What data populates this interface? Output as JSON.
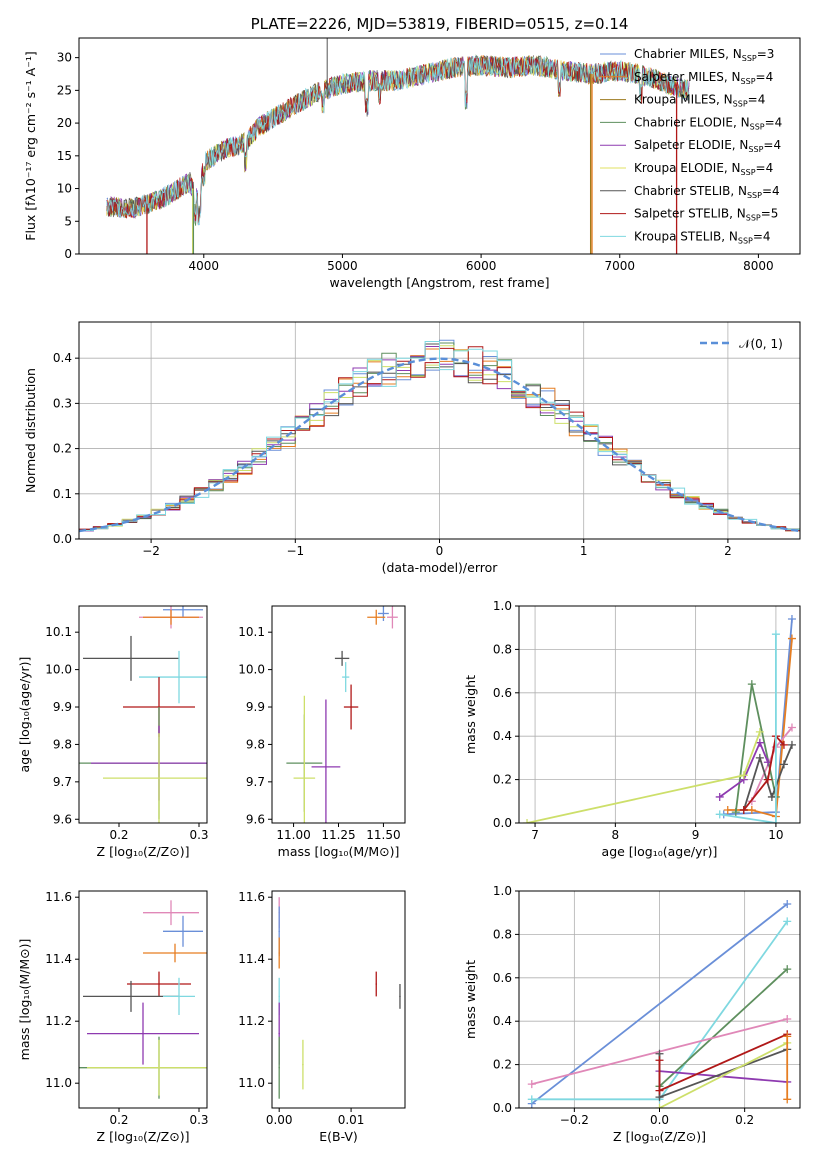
{
  "colors": {
    "c1": "#6a8fd8",
    "c2": "#e67e22",
    "c3": "#9c7a1e",
    "c4": "#5e8f5e",
    "c5": "#8e3ab0",
    "c6": "#e0e060",
    "c7": "#555555",
    "c8": "#b01818",
    "c9": "#7fd8e0",
    "c10": "#e088b8",
    "c11": "#cddf6a"
  },
  "chart_data": [
    {
      "id": "spectrum",
      "type": "line",
      "title": "PLATE=2226, MJD=53819, FIBERID=0515, z=0.14",
      "xlabel": "wavelength [Angstrom, rest frame]",
      "ylabel": "Flux [fλ10⁻¹⁷ erg cm⁻² s⁻¹ A⁻¹]",
      "xlim": [
        3100,
        8300
      ],
      "ylim": [
        0,
        33
      ],
      "xticks": [
        4000,
        5000,
        6000,
        7000,
        8000
      ],
      "yticks": [
        0,
        5,
        10,
        15,
        20,
        25,
        30
      ],
      "legend_position": "top-right",
      "series": [
        {
          "name": "Chabrier MILES, N_SSP=3",
          "color": "c1"
        },
        {
          "name": "Salpeter MILES, N_SSP=4",
          "color": "c2"
        },
        {
          "name": "Kroupa MILES, N_SSP=4",
          "color": "c3"
        },
        {
          "name": "Chabrier ELODIE, N_SSP=4",
          "color": "c4"
        },
        {
          "name": "Salpeter ELODIE, N_SSP=4",
          "color": "c5"
        },
        {
          "name": "Kroupa ELODIE, N_SSP=4",
          "color": "c6"
        },
        {
          "name": "Chabrier STELIB, N_SSP=4",
          "color": "c7"
        },
        {
          "name": "Salpeter STELIB, N_SSP=5",
          "color": "c8"
        },
        {
          "name": "Kroupa STELIB, N_SSP=4",
          "color": "c9"
        }
      ],
      "continuum": [
        [
          3300,
          7.2
        ],
        [
          3500,
          7.0
        ],
        [
          3700,
          8.5
        ],
        [
          3900,
          11.0
        ],
        [
          3960,
          8.0
        ],
        [
          4000,
          14.0
        ],
        [
          4150,
          16.0
        ],
        [
          4300,
          17.0
        ],
        [
          4400,
          19.5
        ],
        [
          4600,
          22.0
        ],
        [
          4800,
          24.5
        ],
        [
          5000,
          26.0
        ],
        [
          5200,
          26.5
        ],
        [
          5400,
          26.5
        ],
        [
          5600,
          27.5
        ],
        [
          5800,
          28.5
        ],
        [
          6000,
          28.8
        ],
        [
          6200,
          28.5
        ],
        [
          6400,
          28.8
        ],
        [
          6600,
          28.0
        ],
        [
          6800,
          27.5
        ],
        [
          7000,
          28.0
        ],
        [
          7200,
          27.2
        ],
        [
          7400,
          25.5
        ],
        [
          7500,
          25.0
        ]
      ],
      "dips": [
        [
          3934,
          3
        ],
        [
          3969,
          3
        ],
        [
          4000,
          2
        ],
        [
          4300,
          3
        ],
        [
          4861,
          2
        ],
        [
          5175,
          4
        ],
        [
          5270,
          2
        ],
        [
          5890,
          5
        ],
        [
          6563,
          3
        ],
        [
          7150,
          3
        ]
      ],
      "spike": [
        4890,
        33
      ],
      "drops": [
        {
          "x": 3590,
          "color": "c8"
        },
        {
          "x": 3920,
          "color": "c6"
        },
        {
          "x": 3925,
          "color": "c4"
        },
        {
          "x": 6790,
          "color": "c3"
        },
        {
          "x": 6800,
          "color": "c2"
        },
        {
          "x": 7410,
          "color": "c8"
        }
      ]
    },
    {
      "id": "residuals",
      "type": "line",
      "xlabel": "(data-model)/error",
      "ylabel": "Normed distribution",
      "xlim": [
        -2.5,
        2.5
      ],
      "ylim": [
        0,
        0.48
      ],
      "xticks": [
        -2,
        -1,
        0,
        1,
        2
      ],
      "yticks": [
        0.0,
        0.1,
        0.2,
        0.3,
        0.4
      ],
      "legend": "𝒩(0, 1)",
      "legend_position": "top-right",
      "gaussian_color": "#5a8fd8",
      "hist_colors": [
        "c1",
        "c2",
        "c4",
        "c5",
        "c11",
        "c7",
        "c8",
        "c9"
      ]
    },
    {
      "id": "age_vs_Z",
      "type": "scatter",
      "xlabel": "Z [log₁₀(Z/Z⊙)]",
      "ylabel": "age  [log₁₀(age/yr)]",
      "xlim": [
        0.15,
        0.31
      ],
      "ylim": [
        9.59,
        10.17
      ],
      "xticks": [
        0.2,
        0.3
      ],
      "yticks": [
        9.6,
        9.7,
        9.8,
        9.9,
        10.0,
        10.1
      ],
      "points": [
        {
          "x": 0.28,
          "y": 10.16,
          "xerr": 0.025,
          "yerr": 0.02,
          "color": "c1"
        },
        {
          "x": 0.265,
          "y": 10.14,
          "xerr": 0.04,
          "yerr": 0.03,
          "color": "c10"
        },
        {
          "x": 0.265,
          "y": 10.14,
          "xerr": 0.035,
          "yerr": 0.02,
          "color": "c2"
        },
        {
          "x": 0.215,
          "y": 10.03,
          "xerr": 0.06,
          "yerr": 0.06,
          "color": "c7"
        },
        {
          "x": 0.275,
          "y": 9.98,
          "xerr": 0.05,
          "yerr": 0.07,
          "color": "c9"
        },
        {
          "x": 0.25,
          "y": 9.9,
          "xerr": 0.045,
          "yerr": 0.08,
          "color": "c8"
        },
        {
          "x": 0.25,
          "y": 9.75,
          "xerr": 0.1,
          "yerr": 0.15,
          "color": "c4"
        },
        {
          "x": 0.25,
          "y": 9.75,
          "xerr": 0.085,
          "yerr": 0.1,
          "color": "c5"
        },
        {
          "x": 0.25,
          "y": 9.71,
          "xerr": 0.07,
          "yerr": 0.12,
          "color": "c11"
        }
      ]
    },
    {
      "id": "age_vs_mass",
      "type": "scatter",
      "xlabel": "mass [log₁₀(M/M⊙)]",
      "ylabel": "",
      "xlim": [
        10.88,
        11.62
      ],
      "ylim": [
        9.59,
        10.17
      ],
      "xticks": [
        11.0,
        11.25,
        11.5
      ],
      "xtick_labels": [
        "11.00",
        "11.25",
        "11.50"
      ],
      "yticks": [
        9.6,
        9.7,
        9.8,
        9.9,
        10.0,
        10.1
      ],
      "points": [
        {
          "x": 11.5,
          "y": 10.15,
          "xerr": 0.03,
          "yerr": 0.02,
          "color": "c1"
        },
        {
          "x": 11.46,
          "y": 10.14,
          "xerr": 0.05,
          "yerr": 0.02,
          "color": "c2"
        },
        {
          "x": 11.55,
          "y": 10.14,
          "xerr": 0.03,
          "yerr": 0.03,
          "color": "c10"
        },
        {
          "x": 11.27,
          "y": 10.03,
          "xerr": 0.04,
          "yerr": 0.02,
          "color": "c7"
        },
        {
          "x": 11.29,
          "y": 9.98,
          "xerr": 0.02,
          "yerr": 0.04,
          "color": "c9"
        },
        {
          "x": 11.32,
          "y": 9.9,
          "xerr": 0.04,
          "yerr": 0.06,
          "color": "c8"
        },
        {
          "x": 11.06,
          "y": 9.75,
          "xerr": 0.1,
          "yerr": 0.13,
          "color": "c4"
        },
        {
          "x": 11.18,
          "y": 9.74,
          "xerr": 0.08,
          "yerr": 0.18,
          "color": "c5"
        },
        {
          "x": 11.06,
          "y": 9.71,
          "xerr": 0.06,
          "yerr": 0.22,
          "color": "c11"
        }
      ]
    },
    {
      "id": "weight_vs_age",
      "type": "line",
      "xlabel": "age  [log₁₀(age/yr)]",
      "ylabel": "mass weight",
      "xlim": [
        6.8,
        10.3
      ],
      "ylim": [
        0.0,
        1.0
      ],
      "xticks": [
        7,
        8,
        9,
        10
      ],
      "yticks": [
        0.0,
        0.2,
        0.4,
        0.6,
        0.8,
        1.0
      ],
      "series": [
        {
          "color": "c1",
          "points": [
            [
              9.35,
              0.04
            ],
            [
              10.0,
              0.05
            ],
            [
              10.2,
              0.94
            ]
          ]
        },
        {
          "color": "c2",
          "points": [
            [
              9.4,
              0.06
            ],
            [
              9.7,
              0.06
            ],
            [
              10.0,
              0.03
            ],
            [
              10.2,
              0.85
            ]
          ]
        },
        {
          "color": "c10",
          "points": [
            [
              9.7,
              0.1
            ],
            [
              10.0,
              0.35
            ],
            [
              10.2,
              0.44
            ]
          ]
        },
        {
          "color": "c4",
          "points": [
            [
              9.5,
              0.05
            ],
            [
              9.7,
              0.64
            ],
            [
              10.0,
              0.12
            ]
          ]
        },
        {
          "color": "c5",
          "points": [
            [
              9.3,
              0.12
            ],
            [
              9.6,
              0.2
            ],
            [
              9.8,
              0.37
            ],
            [
              9.9,
              0.28
            ]
          ]
        },
        {
          "color": "c11",
          "points": [
            [
              6.9,
              0.0
            ],
            [
              9.6,
              0.22
            ],
            [
              9.8,
              0.42
            ]
          ]
        },
        {
          "color": "c7",
          "points": [
            [
              9.6,
              0.06
            ],
            [
              9.8,
              0.3
            ],
            [
              9.95,
              0.12
            ],
            [
              10.1,
              0.27
            ],
            [
              10.2,
              0.36
            ]
          ]
        },
        {
          "color": "c8",
          "points": [
            [
              9.6,
              0.06
            ],
            [
              9.9,
              0.2
            ],
            [
              10.0,
              0.4
            ],
            [
              10.1,
              0.36
            ]
          ]
        },
        {
          "color": "c9",
          "points": [
            [
              9.3,
              0.04
            ],
            [
              10.0,
              0.0
            ],
            [
              10.0,
              0.87
            ]
          ]
        }
      ]
    },
    {
      "id": "mass_vs_Z",
      "type": "scatter",
      "xlabel": "Z [log₁₀(Z/Z⊙)]",
      "ylabel": "mass [log₁₀(M/M⊙)]",
      "xlim": [
        0.15,
        0.31
      ],
      "ylim": [
        10.92,
        11.62
      ],
      "xticks": [
        0.2,
        0.3
      ],
      "yticks": [
        11.0,
        11.2,
        11.4,
        11.6
      ],
      "points": [
        {
          "x": 0.265,
          "y": 11.55,
          "xerr": 0.035,
          "yerr": 0.04,
          "color": "c10"
        },
        {
          "x": 0.28,
          "y": 11.49,
          "xerr": 0.025,
          "yerr": 0.05,
          "color": "c1"
        },
        {
          "x": 0.27,
          "y": 11.42,
          "xerr": 0.04,
          "yerr": 0.03,
          "color": "c2"
        },
        {
          "x": 0.25,
          "y": 11.32,
          "xerr": 0.04,
          "yerr": 0.04,
          "color": "c8"
        },
        {
          "x": 0.215,
          "y": 11.28,
          "xerr": 0.06,
          "yerr": 0.05,
          "color": "c7"
        },
        {
          "x": 0.275,
          "y": 11.28,
          "xerr": 0.02,
          "yerr": 0.06,
          "color": "c9"
        },
        {
          "x": 0.23,
          "y": 11.16,
          "xerr": 0.07,
          "yerr": 0.1,
          "color": "c5"
        },
        {
          "x": 0.25,
          "y": 11.05,
          "xerr": 0.1,
          "yerr": 0.1,
          "color": "c4"
        },
        {
          "x": 0.25,
          "y": 11.05,
          "xerr": 0.09,
          "yerr": 0.09,
          "color": "c11"
        }
      ]
    },
    {
      "id": "mass_vs_EBV",
      "type": "scatter",
      "xlabel": "E(B-V)",
      "ylabel": "",
      "xlim": [
        -0.001,
        0.0175
      ],
      "ylim": [
        10.92,
        11.62
      ],
      "xticks": [
        0.0,
        0.01
      ],
      "xtick_labels": [
        "0.00",
        "0.01"
      ],
      "yticks": [
        11.0,
        11.2,
        11.4,
        11.6
      ],
      "points": [
        {
          "x": 0.0,
          "y": 11.55,
          "xerr": 0,
          "yerr": 0.05,
          "color": "c10"
        },
        {
          "x": 0.0,
          "y": 11.49,
          "xerr": 0,
          "yerr": 0.08,
          "color": "c1"
        },
        {
          "x": 0.0,
          "y": 11.42,
          "xerr": 0,
          "yerr": 0.05,
          "color": "c2"
        },
        {
          "x": 0.0,
          "y": 11.28,
          "xerr": 0,
          "yerr": 0.06,
          "color": "c9"
        },
        {
          "x": 0.0,
          "y": 11.16,
          "xerr": 0,
          "yerr": 0.1,
          "color": "c5"
        },
        {
          "x": 0.0,
          "y": 11.05,
          "xerr": 0,
          "yerr": 0.1,
          "color": "c4"
        },
        {
          "x": 0.0033,
          "y": 11.06,
          "xerr": 0,
          "yerr": 0.08,
          "color": "c11"
        },
        {
          "x": 0.0135,
          "y": 11.32,
          "xerr": 0,
          "yerr": 0.04,
          "color": "c8"
        },
        {
          "x": 0.0168,
          "y": 11.28,
          "xerr": 0,
          "yerr": 0.04,
          "color": "c7"
        }
      ]
    },
    {
      "id": "weight_vs_Z",
      "type": "line",
      "xlabel": "Z [log₁₀(Z/Z⊙)]",
      "ylabel": "mass weight",
      "xlim": [
        -0.33,
        0.33
      ],
      "ylim": [
        0.0,
        1.0
      ],
      "xticks": [
        -0.2,
        0.0,
        0.2
      ],
      "xtick_labels": [
        "−0.2",
        "0.0",
        "0.2"
      ],
      "yticks": [
        0.0,
        0.2,
        0.4,
        0.6,
        0.8,
        1.0
      ],
      "series": [
        {
          "color": "c1",
          "points": [
            [
              -0.3,
              0.02
            ],
            [
              0.3,
              0.94
            ]
          ]
        },
        {
          "color": "c9",
          "points": [
            [
              -0.3,
              0.04
            ],
            [
              0.0,
              0.04
            ],
            [
              0.3,
              0.86
            ]
          ]
        },
        {
          "color": "c4",
          "points": [
            [
              0.0,
              0.1
            ],
            [
              0.3,
              0.64
            ]
          ]
        },
        {
          "color": "c10",
          "points": [
            [
              -0.3,
              0.11
            ],
            [
              0.3,
              0.41
            ]
          ]
        },
        {
          "color": "c5",
          "points": [
            [
              0.0,
              0.17
            ],
            [
              0.3,
              0.12
            ]
          ]
        },
        {
          "color": "c7",
          "points": [
            [
              0.0,
              0.25
            ],
            [
              0.0,
              0.05
            ],
            [
              0.3,
              0.27
            ]
          ]
        },
        {
          "color": "c8",
          "points": [
            [
              0.0,
              0.22
            ],
            [
              0.0,
              0.08
            ],
            [
              0.3,
              0.34
            ]
          ]
        },
        {
          "color": "c11",
          "points": [
            [
              0.0,
              0.0
            ],
            [
              0.3,
              0.3
            ]
          ]
        },
        {
          "color": "c2",
          "points": [
            [
              0.3,
              0.04
            ],
            [
              0.3,
              0.33
            ]
          ]
        }
      ]
    }
  ]
}
